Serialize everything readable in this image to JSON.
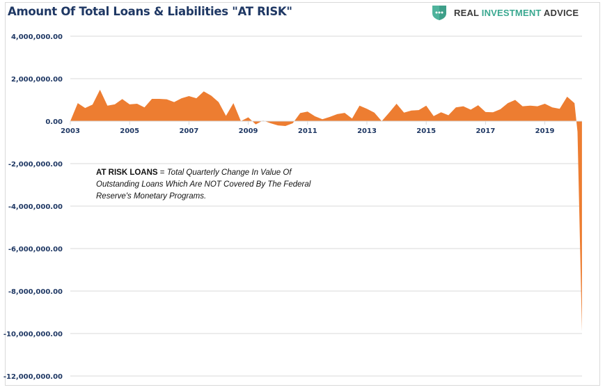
{
  "header": {
    "title": "Amount Of Total Loans & Liabilities \"AT RISK\"",
    "brand": {
      "icon": "shield-chat-icon",
      "word1": "REAL",
      "word2": "INVESTMENT",
      "word3": "ADVICE",
      "colors": {
        "dark": "#3a3a3a",
        "accent": "#3aa890"
      }
    }
  },
  "annotation": {
    "label": "AT RISK LOANS",
    "equals": " = ",
    "text": "Total Quarterly Change In Value Of Outstanding Loans Which Are NOT Covered By The Federal Reserve's Monetary Programs."
  },
  "chart_data": {
    "type": "area",
    "title": "Amount Of Total Loans & Liabilities \"AT RISK\"",
    "xlabel": "",
    "ylabel": "",
    "units": "quarterly change (thousands of $, as plotted)",
    "color": "#ed7d31",
    "grid": true,
    "legend": "none",
    "ylim": [
      -12000000,
      4000000
    ],
    "xlim": [
      2003,
      2020.4
    ],
    "y_ticks": [
      4000000,
      2000000,
      0,
      -2000000,
      -4000000,
      -6000000,
      -8000000,
      -10000000,
      -12000000
    ],
    "y_tick_labels": [
      "4,000,000.00",
      "2,000,000.00",
      "0.00",
      "-2,000,000.00",
      "-4,000,000.00",
      "-6,000,000.00",
      "-8,000,000.00",
      "-10,000,000.00",
      "-12,000,000.00"
    ],
    "x_ticks": [
      2003,
      2005,
      2007,
      2009,
      2011,
      2013,
      2015,
      2017,
      2019
    ],
    "x_tick_labels": [
      "2003",
      "2005",
      "2007",
      "2009",
      "2011",
      "2013",
      "2015",
      "2017",
      "2019"
    ],
    "x": [
      2003.0,
      2003.25,
      2003.5,
      2003.75,
      2004.0,
      2004.25,
      2004.5,
      2004.75,
      2005.0,
      2005.25,
      2005.5,
      2005.75,
      2006.0,
      2006.25,
      2006.5,
      2006.75,
      2007.0,
      2007.25,
      2007.5,
      2007.75,
      2008.0,
      2008.25,
      2008.5,
      2008.75,
      2009.0,
      2009.25,
      2009.5,
      2009.75,
      2010.0,
      2010.25,
      2010.5,
      2010.75,
      2011.0,
      2011.25,
      2011.5,
      2011.75,
      2012.0,
      2012.25,
      2012.5,
      2012.75,
      2013.0,
      2013.25,
      2013.5,
      2013.75,
      2014.0,
      2014.25,
      2014.5,
      2014.75,
      2015.0,
      2015.25,
      2015.5,
      2015.75,
      2016.0,
      2016.25,
      2016.5,
      2016.75,
      2017.0,
      2017.25,
      2017.5,
      2017.75,
      2018.0,
      2018.25,
      2018.5,
      2018.75,
      2019.0,
      2019.25,
      2019.5,
      2019.75,
      2020.0,
      2020.1,
      2020.25
    ],
    "values": [
      0,
      850000,
      620000,
      780000,
      1480000,
      730000,
      790000,
      1040000,
      790000,
      820000,
      650000,
      1050000,
      1050000,
      1030000,
      900000,
      1080000,
      1180000,
      1080000,
      1400000,
      1200000,
      900000,
      250000,
      850000,
      0,
      180000,
      -150000,
      30000,
      -100000,
      -200000,
      -230000,
      -100000,
      380000,
      450000,
      230000,
      90000,
      200000,
      330000,
      390000,
      120000,
      730000,
      580000,
      400000,
      0,
      400000,
      820000,
      400000,
      500000,
      520000,
      730000,
      240000,
      420000,
      280000,
      650000,
      700000,
      540000,
      750000,
      430000,
      420000,
      560000,
      850000,
      1000000,
      700000,
      730000,
      700000,
      820000,
      650000,
      580000,
      1150000,
      850000,
      -500000,
      -9900000
    ]
  }
}
